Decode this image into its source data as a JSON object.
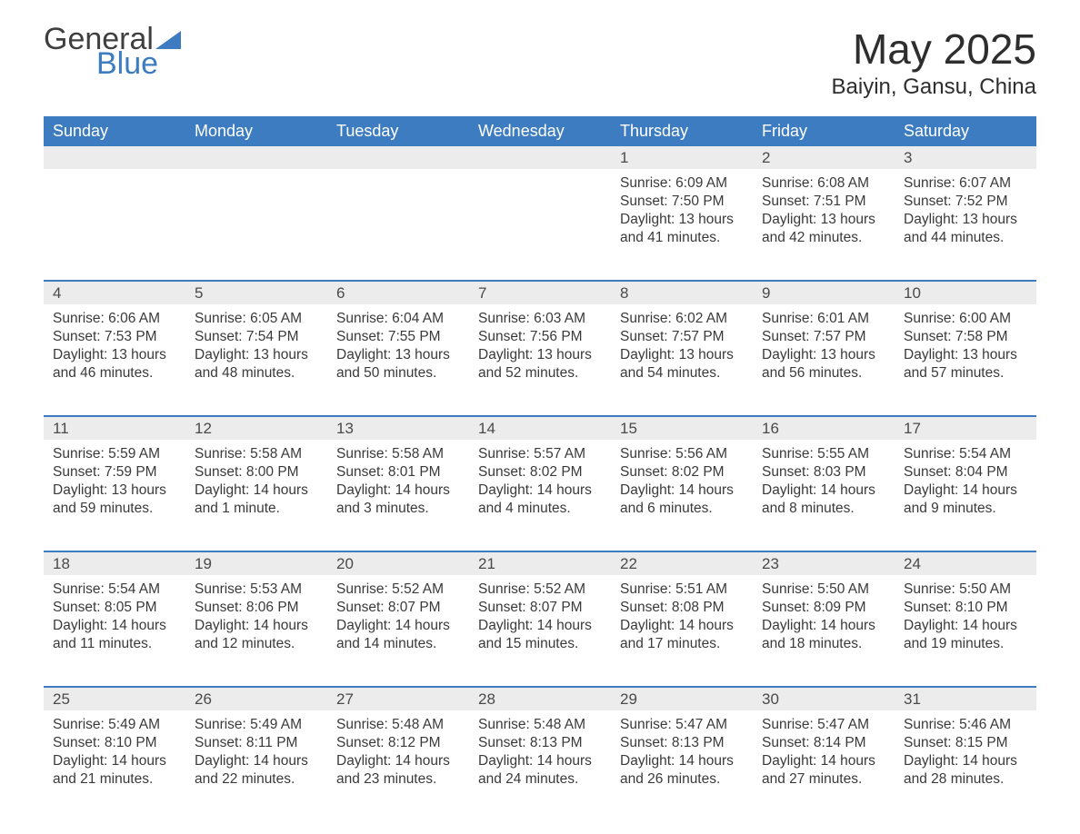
{
  "brand": {
    "word1": "General",
    "word2": "Blue",
    "logo_color": "#3d7cc0"
  },
  "title": "May 2025",
  "location": "Baiyin, Gansu, China",
  "colors": {
    "header_bg": "#3d7cc0",
    "header_text": "#ffffff",
    "daynum_bg": "#ececec",
    "text": "#3a3a3a",
    "divider": "#3d7cc0",
    "page_bg": "#ffffff"
  },
  "typography": {
    "title_fontsize": 46,
    "location_fontsize": 24,
    "weekday_fontsize": 18,
    "body_fontsize": 15.5
  },
  "calendar": {
    "type": "table",
    "weekdays": [
      "Sunday",
      "Monday",
      "Tuesday",
      "Wednesday",
      "Thursday",
      "Friday",
      "Saturday"
    ],
    "weeks": [
      [
        {
          "day": "",
          "lines": []
        },
        {
          "day": "",
          "lines": []
        },
        {
          "day": "",
          "lines": []
        },
        {
          "day": "",
          "lines": []
        },
        {
          "day": "1",
          "lines": [
            "Sunrise: 6:09 AM",
            "Sunset: 7:50 PM",
            "Daylight: 13 hours",
            "and 41 minutes."
          ]
        },
        {
          "day": "2",
          "lines": [
            "Sunrise: 6:08 AM",
            "Sunset: 7:51 PM",
            "Daylight: 13 hours",
            "and 42 minutes."
          ]
        },
        {
          "day": "3",
          "lines": [
            "Sunrise: 6:07 AM",
            "Sunset: 7:52 PM",
            "Daylight: 13 hours",
            "and 44 minutes."
          ]
        }
      ],
      [
        {
          "day": "4",
          "lines": [
            "Sunrise: 6:06 AM",
            "Sunset: 7:53 PM",
            "Daylight: 13 hours",
            "and 46 minutes."
          ]
        },
        {
          "day": "5",
          "lines": [
            "Sunrise: 6:05 AM",
            "Sunset: 7:54 PM",
            "Daylight: 13 hours",
            "and 48 minutes."
          ]
        },
        {
          "day": "6",
          "lines": [
            "Sunrise: 6:04 AM",
            "Sunset: 7:55 PM",
            "Daylight: 13 hours",
            "and 50 minutes."
          ]
        },
        {
          "day": "7",
          "lines": [
            "Sunrise: 6:03 AM",
            "Sunset: 7:56 PM",
            "Daylight: 13 hours",
            "and 52 minutes."
          ]
        },
        {
          "day": "8",
          "lines": [
            "Sunrise: 6:02 AM",
            "Sunset: 7:57 PM",
            "Daylight: 13 hours",
            "and 54 minutes."
          ]
        },
        {
          "day": "9",
          "lines": [
            "Sunrise: 6:01 AM",
            "Sunset: 7:57 PM",
            "Daylight: 13 hours",
            "and 56 minutes."
          ]
        },
        {
          "day": "10",
          "lines": [
            "Sunrise: 6:00 AM",
            "Sunset: 7:58 PM",
            "Daylight: 13 hours",
            "and 57 minutes."
          ]
        }
      ],
      [
        {
          "day": "11",
          "lines": [
            "Sunrise: 5:59 AM",
            "Sunset: 7:59 PM",
            "Daylight: 13 hours",
            "and 59 minutes."
          ]
        },
        {
          "day": "12",
          "lines": [
            "Sunrise: 5:58 AM",
            "Sunset: 8:00 PM",
            "Daylight: 14 hours",
            "and 1 minute."
          ]
        },
        {
          "day": "13",
          "lines": [
            "Sunrise: 5:58 AM",
            "Sunset: 8:01 PM",
            "Daylight: 14 hours",
            "and 3 minutes."
          ]
        },
        {
          "day": "14",
          "lines": [
            "Sunrise: 5:57 AM",
            "Sunset: 8:02 PM",
            "Daylight: 14 hours",
            "and 4 minutes."
          ]
        },
        {
          "day": "15",
          "lines": [
            "Sunrise: 5:56 AM",
            "Sunset: 8:02 PM",
            "Daylight: 14 hours",
            "and 6 minutes."
          ]
        },
        {
          "day": "16",
          "lines": [
            "Sunrise: 5:55 AM",
            "Sunset: 8:03 PM",
            "Daylight: 14 hours",
            "and 8 minutes."
          ]
        },
        {
          "day": "17",
          "lines": [
            "Sunrise: 5:54 AM",
            "Sunset: 8:04 PM",
            "Daylight: 14 hours",
            "and 9 minutes."
          ]
        }
      ],
      [
        {
          "day": "18",
          "lines": [
            "Sunrise: 5:54 AM",
            "Sunset: 8:05 PM",
            "Daylight: 14 hours",
            "and 11 minutes."
          ]
        },
        {
          "day": "19",
          "lines": [
            "Sunrise: 5:53 AM",
            "Sunset: 8:06 PM",
            "Daylight: 14 hours",
            "and 12 minutes."
          ]
        },
        {
          "day": "20",
          "lines": [
            "Sunrise: 5:52 AM",
            "Sunset: 8:07 PM",
            "Daylight: 14 hours",
            "and 14 minutes."
          ]
        },
        {
          "day": "21",
          "lines": [
            "Sunrise: 5:52 AM",
            "Sunset: 8:07 PM",
            "Daylight: 14 hours",
            "and 15 minutes."
          ]
        },
        {
          "day": "22",
          "lines": [
            "Sunrise: 5:51 AM",
            "Sunset: 8:08 PM",
            "Daylight: 14 hours",
            "and 17 minutes."
          ]
        },
        {
          "day": "23",
          "lines": [
            "Sunrise: 5:50 AM",
            "Sunset: 8:09 PM",
            "Daylight: 14 hours",
            "and 18 minutes."
          ]
        },
        {
          "day": "24",
          "lines": [
            "Sunrise: 5:50 AM",
            "Sunset: 8:10 PM",
            "Daylight: 14 hours",
            "and 19 minutes."
          ]
        }
      ],
      [
        {
          "day": "25",
          "lines": [
            "Sunrise: 5:49 AM",
            "Sunset: 8:10 PM",
            "Daylight: 14 hours",
            "and 21 minutes."
          ]
        },
        {
          "day": "26",
          "lines": [
            "Sunrise: 5:49 AM",
            "Sunset: 8:11 PM",
            "Daylight: 14 hours",
            "and 22 minutes."
          ]
        },
        {
          "day": "27",
          "lines": [
            "Sunrise: 5:48 AM",
            "Sunset: 8:12 PM",
            "Daylight: 14 hours",
            "and 23 minutes."
          ]
        },
        {
          "day": "28",
          "lines": [
            "Sunrise: 5:48 AM",
            "Sunset: 8:13 PM",
            "Daylight: 14 hours",
            "and 24 minutes."
          ]
        },
        {
          "day": "29",
          "lines": [
            "Sunrise: 5:47 AM",
            "Sunset: 8:13 PM",
            "Daylight: 14 hours",
            "and 26 minutes."
          ]
        },
        {
          "day": "30",
          "lines": [
            "Sunrise: 5:47 AM",
            "Sunset: 8:14 PM",
            "Daylight: 14 hours",
            "and 27 minutes."
          ]
        },
        {
          "day": "31",
          "lines": [
            "Sunrise: 5:46 AM",
            "Sunset: 8:15 PM",
            "Daylight: 14 hours",
            "and 28 minutes."
          ]
        }
      ]
    ]
  }
}
